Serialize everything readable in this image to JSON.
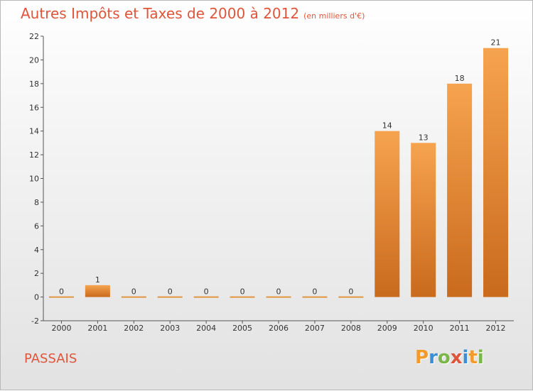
{
  "title": "Autres Impôts et Taxes de 2000 à 2012",
  "subtitle": "(en milliers d'€)",
  "commune": "PASSAIS",
  "logo": {
    "letters": [
      "P",
      "r",
      "o",
      "x",
      "i",
      "t",
      "i"
    ],
    "colors": [
      "#f39b2a",
      "#3a8fd6",
      "#7ab648",
      "#e0553a",
      "#3a8fd6",
      "#f39b2a",
      "#7ab648"
    ]
  },
  "colors": {
    "bar_top": "#f6a34f",
    "bar_bottom": "#c96a1c",
    "title": "#e0553a",
    "axis": "#555555"
  },
  "chart_data": {
    "type": "bar",
    "categories": [
      "2000",
      "2001",
      "2002",
      "2003",
      "2004",
      "2005",
      "2006",
      "2007",
      "2008",
      "2009",
      "2010",
      "2011",
      "2012"
    ],
    "values": [
      0,
      1,
      0,
      0,
      0,
      0,
      0,
      0,
      0,
      14,
      13,
      18,
      21
    ],
    "data_labels": [
      "0",
      "1",
      "0",
      "0",
      "0",
      "0",
      "0",
      "0",
      "0",
      "14",
      "13",
      "18",
      "21"
    ],
    "title": "Autres Impôts et Taxes de 2000 à 2012",
    "xlabel": "",
    "ylabel": "",
    "ylim": [
      -2,
      22
    ],
    "yticks": [
      -2,
      0,
      2,
      4,
      6,
      8,
      10,
      12,
      14,
      16,
      18,
      20,
      22
    ],
    "grid": false,
    "legend": "none"
  }
}
